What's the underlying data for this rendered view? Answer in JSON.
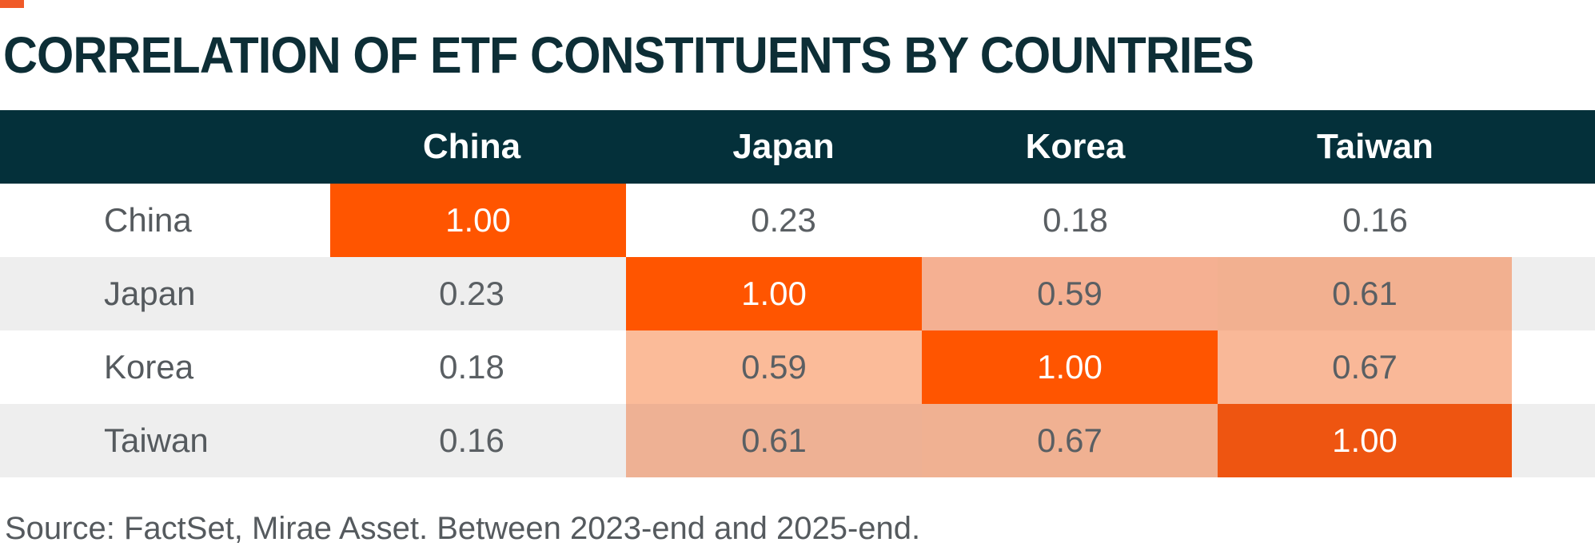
{
  "title": "CORRELATION OF ETF CONSTITUENTS BY COUNTRIES",
  "source": "Source: FactSet, Mirae Asset. Between 2023-end and 2025-end.",
  "colors": {
    "accent": "#f05a28",
    "header_bg": "#04303a",
    "diagonal": "#ff5500",
    "diagonal_taiwan": "#ee5511",
    "heat_059": "#f5b092",
    "heat_061": "#f2b090",
    "heat_067": "#f9b898",
    "zebra": "#eeeeee"
  },
  "chart_data": {
    "type": "heatmap",
    "title": "CORRELATION OF ETF CONSTITUENTS BY COUNTRIES",
    "columns": [
      "China",
      "Japan",
      "Korea",
      "Taiwan"
    ],
    "rows": [
      {
        "label": "China",
        "values": [
          "1.00",
          "0.23",
          "0.18",
          "0.16"
        ]
      },
      {
        "label": "Japan",
        "values": [
          "0.23",
          "1.00",
          "0.59",
          "0.61"
        ]
      },
      {
        "label": "Korea",
        "values": [
          "0.18",
          "0.59",
          "1.00",
          "0.67"
        ]
      },
      {
        "label": "Taiwan",
        "values": [
          "0.16",
          "0.61",
          "0.67",
          "1.00"
        ]
      }
    ]
  }
}
